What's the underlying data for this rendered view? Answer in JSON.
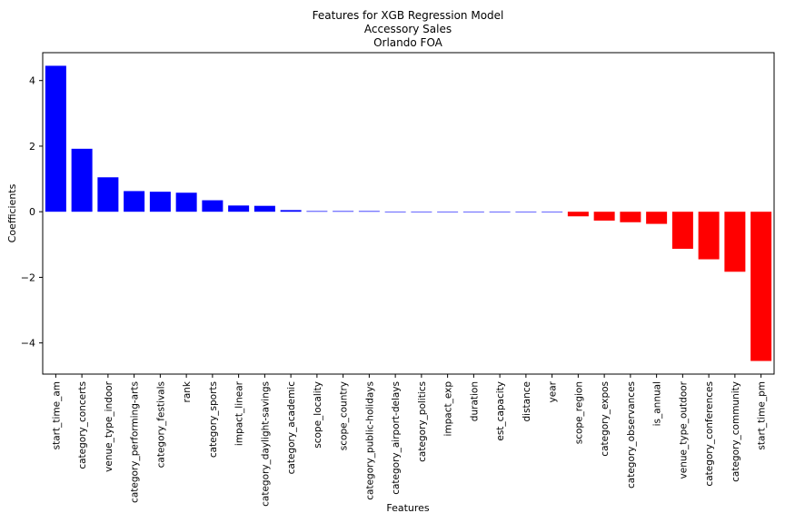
{
  "chart_data": {
    "type": "bar",
    "title": [
      "Features for XGB Regression Model",
      "Accessory Sales",
      "Orlando FOA"
    ],
    "xlabel": "Features",
    "ylabel": "Coefficients",
    "ylim": [
      -4.95,
      4.85
    ],
    "yticks": [
      -4,
      -2,
      0,
      2,
      4
    ],
    "ytick_labels": [
      "−4",
      "−2",
      "0",
      "2",
      "4"
    ],
    "grid": false,
    "legend": "none",
    "colors": {
      "positive": "#0000ff",
      "negative": "#ff0000"
    },
    "categories": [
      "start_time_am",
      "category_concerts",
      "venue_type_indoor",
      "category_performing-arts",
      "category_festivals",
      "rank",
      "category_sports",
      "impact_linear",
      "category_daylight-savings",
      "category_academic",
      "scope_locality",
      "scope_country",
      "category_public-holidays",
      "category_airport-delays",
      "category_politics",
      "impact_exp",
      "duration",
      "est_capacity",
      "distance",
      "year",
      "scope_region",
      "category_expos",
      "category_observances",
      "is_annual",
      "venue_type_outdoor",
      "category_conferences",
      "category_community",
      "start_time_pm"
    ],
    "values": [
      4.45,
      1.92,
      1.05,
      0.63,
      0.61,
      0.58,
      0.35,
      0.19,
      0.18,
      0.05,
      0.02,
      0.02,
      0.02,
      0.0,
      0.0,
      0.0,
      0.0,
      0.0,
      0.0,
      0.0,
      -0.14,
      -0.27,
      -0.32,
      -0.37,
      -1.13,
      -1.45,
      -1.83,
      -4.55
    ]
  }
}
